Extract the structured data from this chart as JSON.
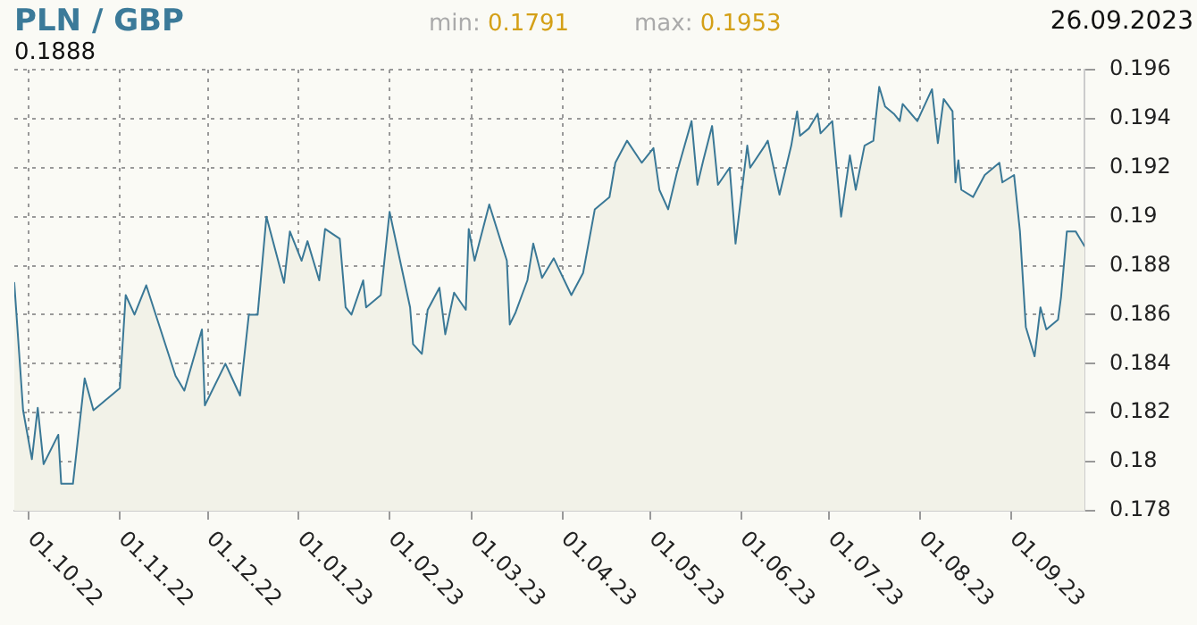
{
  "chart_data": {
    "type": "area",
    "title": "PLN / GBP",
    "annotations": [
      "min: 0.1791",
      "max: 0.1953",
      "26.09.2023",
      "0.1888"
    ],
    "x": [
      "2022-09-26",
      "2022-09-29",
      "2022-10-02",
      "2022-10-04",
      "2022-10-06",
      "2022-10-11",
      "2022-10-12",
      "2022-10-16",
      "2022-10-20",
      "2022-10-23",
      "2022-11-01",
      "2022-11-03",
      "2022-11-06",
      "2022-11-10",
      "2022-11-20",
      "2022-11-23",
      "2022-11-29",
      "2022-11-30",
      "2022-12-07",
      "2022-12-12",
      "2022-12-15",
      "2022-12-18",
      "2022-12-21",
      "2022-12-27",
      "2022-12-29",
      "2023-01-02",
      "2023-01-04",
      "2023-01-08",
      "2023-01-10",
      "2023-01-15",
      "2023-01-17",
      "2023-01-19",
      "2023-01-23",
      "2023-01-24",
      "2023-01-29",
      "2023-02-01",
      "2023-02-08",
      "2023-02-09",
      "2023-02-12",
      "2023-02-14",
      "2023-02-18",
      "2023-02-20",
      "2023-02-23",
      "2023-02-27",
      "2023-02-28",
      "2023-03-02",
      "2023-03-07",
      "2023-03-13",
      "2023-03-14",
      "2023-03-16",
      "2023-03-20",
      "2023-03-22",
      "2023-03-25",
      "2023-03-29",
      "2023-04-04",
      "2023-04-08",
      "2023-04-12",
      "2023-04-17",
      "2023-04-19",
      "2023-04-23",
      "2023-04-28",
      "2023-05-02",
      "2023-05-04",
      "2023-05-07",
      "2023-05-10",
      "2023-05-15",
      "2023-05-17",
      "2023-05-19",
      "2023-05-22",
      "2023-05-24",
      "2023-05-28",
      "2023-05-30",
      "2023-06-03",
      "2023-06-04",
      "2023-06-09",
      "2023-06-10",
      "2023-06-14",
      "2023-06-18",
      "2023-06-20",
      "2023-06-21",
      "2023-06-24",
      "2023-06-27",
      "2023-06-28",
      "2023-07-02",
      "2023-07-05",
      "2023-07-08",
      "2023-07-10",
      "2023-07-13",
      "2023-07-16",
      "2023-07-18",
      "2023-07-20",
      "2023-07-23",
      "2023-07-25",
      "2023-07-26",
      "2023-07-31",
      "2023-08-05",
      "2023-08-07",
      "2023-08-09",
      "2023-08-12",
      "2023-08-13",
      "2023-08-14",
      "2023-08-15",
      "2023-08-19",
      "2023-08-23",
      "2023-08-28",
      "2023-08-29",
      "2023-09-02",
      "2023-09-04",
      "2023-09-06",
      "2023-09-09",
      "2023-09-11",
      "2023-09-13",
      "2023-09-17",
      "2023-09-18",
      "2023-09-20",
      "2023-09-23",
      "2023-09-26"
    ],
    "series": [
      {
        "color": "#3a7896",
        "values": [
          0.1873,
          0.1821,
          0.1801,
          0.1822,
          0.1799,
          0.1811,
          0.1791,
          0.1791,
          0.1834,
          0.1821,
          0.183,
          0.1868,
          0.186,
          0.1872,
          0.1835,
          0.1829,
          0.1854,
          0.1823,
          0.184,
          0.1827,
          0.186,
          0.186,
          0.19,
          0.1873,
          0.1894,
          0.1882,
          0.189,
          0.1874,
          0.1895,
          0.1891,
          0.1863,
          0.186,
          0.1874,
          0.1863,
          0.1868,
          0.1902,
          0.1863,
          0.1848,
          0.1844,
          0.1862,
          0.1871,
          0.1852,
          0.1869,
          0.1862,
          0.1895,
          0.1882,
          0.1905,
          0.1882,
          0.1856,
          0.1861,
          0.1874,
          0.1889,
          0.1875,
          0.1883,
          0.1868,
          0.1877,
          0.1903,
          0.1908,
          0.1922,
          0.1931,
          0.1922,
          0.1928,
          0.1911,
          0.1903,
          0.1918,
          0.1939,
          0.1913,
          0.1923,
          0.1937,
          0.1913,
          0.192,
          0.1889,
          0.1929,
          0.192,
          0.1929,
          0.1931,
          0.1909,
          0.1929,
          0.1943,
          0.1933,
          0.1936,
          0.1942,
          0.1934,
          0.1939,
          0.19,
          0.1925,
          0.1911,
          0.1929,
          0.1931,
          0.1953,
          0.1945,
          0.1942,
          0.1939,
          0.1946,
          0.1939,
          0.1952,
          0.193,
          0.1948,
          0.1943,
          0.1914,
          0.1923,
          0.1911,
          0.1908,
          0.1917,
          0.1922,
          0.1914,
          0.1917,
          0.1894,
          0.1855,
          0.1843,
          0.1863,
          0.1854,
          0.1858,
          0.1867,
          0.1894,
          0.1894,
          0.1888
        ]
      }
    ],
    "xlim": [
      "2022-09-26",
      "2023-09-26"
    ],
    "xticks": [
      {
        "value": "2022-10-01",
        "label": "01.10.22"
      },
      {
        "value": "2022-11-01",
        "label": "01.11.22"
      },
      {
        "value": "2022-12-01",
        "label": "01.12.22"
      },
      {
        "value": "2023-01-01",
        "label": "01.01.23"
      },
      {
        "value": "2023-02-01",
        "label": "01.02.23"
      },
      {
        "value": "2023-03-01",
        "label": "01.03.23"
      },
      {
        "value": "2023-04-01",
        "label": "01.04.23"
      },
      {
        "value": "2023-05-01",
        "label": "01.05.23"
      },
      {
        "value": "2023-06-01",
        "label": "01.06.23"
      },
      {
        "value": "2023-07-01",
        "label": "01.07.23"
      },
      {
        "value": "2023-08-01",
        "label": "01.08.23"
      },
      {
        "value": "2023-09-01",
        "label": "01.09.23"
      }
    ],
    "ylim": [
      0.178,
      0.196
    ],
    "yticks": [
      0.178,
      0.18,
      0.182,
      0.184,
      0.186,
      0.188,
      0.19,
      0.192,
      0.194,
      0.196
    ],
    "grid": true,
    "legend": false,
    "marker": "none",
    "line_style": "solid"
  }
}
